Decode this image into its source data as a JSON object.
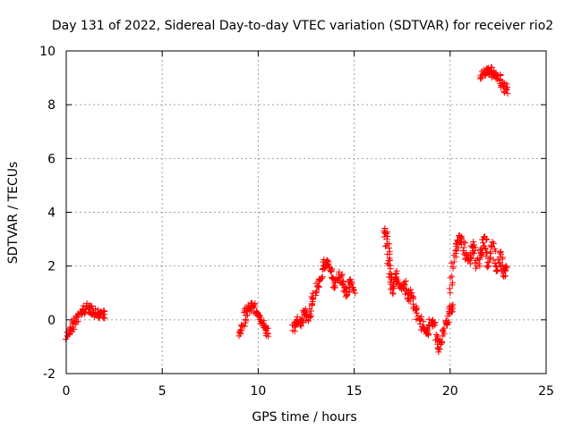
{
  "chart_data": {
    "type": "scatter",
    "title": "Day 131 of 2022, Sidereal Day-to-day VTEC variation (SDTVAR) for receiver rio2",
    "xlabel": "GPS time / hours",
    "ylabel": "SDTVAR / TECUs",
    "xlim": [
      0,
      25
    ],
    "ylim": [
      -2,
      10
    ],
    "xticks": [
      0,
      5,
      10,
      15,
      20,
      25
    ],
    "yticks": [
      -2,
      0,
      2,
      4,
      6,
      8,
      10
    ],
    "grid": true,
    "marker": "+",
    "color": "#ff0000",
    "series": [
      {
        "name": "SDTVAR",
        "segments": [
          {
            "x": [
              0.05,
              0.2,
              0.4,
              0.6,
              0.8,
              1.0,
              1.2,
              1.4,
              1.6,
              1.8,
              2.0
            ],
            "y": [
              -0.6,
              -0.4,
              -0.1,
              0.1,
              0.3,
              0.4,
              0.45,
              0.35,
              0.2,
              0.25,
              0.2
            ]
          },
          {
            "x": [
              9.0,
              9.2,
              9.4,
              9.6,
              9.8,
              10.0,
              10.2,
              10.4,
              10.5
            ],
            "y": [
              -0.6,
              -0.2,
              0.3,
              0.5,
              0.45,
              0.2,
              -0.1,
              -0.4,
              -0.5
            ]
          },
          {
            "x": [
              11.8,
              12.0,
              12.2,
              12.4,
              12.6,
              12.8,
              13.0,
              13.2,
              13.4,
              13.6,
              13.8,
              14.0,
              14.2,
              14.4,
              14.6,
              14.8,
              15.0
            ],
            "y": [
              -0.4,
              0.0,
              -0.2,
              0.3,
              0.0,
              0.6,
              1.0,
              1.5,
              2.0,
              2.2,
              1.8,
              1.2,
              1.7,
              1.3,
              0.9,
              1.5,
              1.1
            ]
          },
          {
            "x": [
              16.6,
              16.7,
              16.8,
              16.9,
              17.0,
              17.2,
              17.4,
              17.6,
              17.8,
              18.0,
              18.2,
              18.4,
              18.6,
              18.8,
              19.0,
              19.2,
              19.4,
              19.6,
              19.8,
              20.0,
              20.1
            ],
            "y": [
              3.4,
              3.0,
              2.2,
              1.6,
              1.0,
              1.7,
              1.2,
              1.4,
              0.8,
              1.0,
              0.4,
              0.0,
              -0.3,
              -0.5,
              -0.1,
              -0.2,
              -1.2,
              -0.6,
              -0.1,
              0.3,
              0.5
            ]
          },
          {
            "x": [
              20.0,
              20.2,
              20.4,
              20.6,
              20.8,
              21.0,
              21.2,
              21.4,
              21.6,
              21.8,
              22.0,
              22.2,
              22.4,
              22.6,
              22.8,
              22.9
            ],
            "y": [
              1.0,
              2.4,
              2.9,
              3.1,
              2.4,
              2.2,
              2.9,
              2.0,
              2.5,
              3.1,
              2.0,
              2.9,
              1.8,
              2.5,
              1.6,
              2.0
            ]
          },
          {
            "x": [
              21.6,
              21.8,
              22.0,
              22.2,
              22.4,
              22.6,
              22.8,
              22.95
            ],
            "y": [
              9.1,
              9.2,
              9.3,
              9.2,
              9.1,
              8.9,
              8.7,
              8.55
            ]
          }
        ]
      }
    ]
  }
}
